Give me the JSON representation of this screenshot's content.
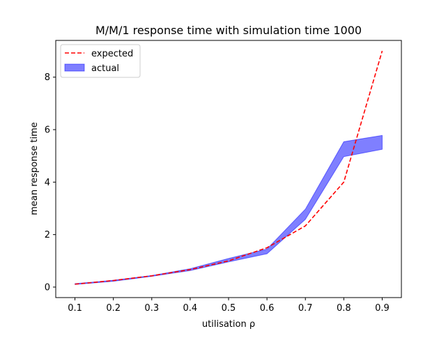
{
  "chart_data": {
    "type": "area",
    "title": "M/M/1 response time with simulation time 1000",
    "xlabel": "utilisation ρ",
    "ylabel": "mean response time",
    "xlim": [
      0.05,
      0.95
    ],
    "ylim": [
      -0.4,
      9.4
    ],
    "xticks": [
      0.1,
      0.2,
      0.3,
      0.4,
      0.5,
      0.6,
      0.7,
      0.8,
      0.9
    ],
    "xtick_labels": [
      "0.1",
      "0.2",
      "0.3",
      "0.4",
      "0.5",
      "0.6",
      "0.7",
      "0.8",
      "0.9"
    ],
    "yticks": [
      0,
      2,
      4,
      6,
      8
    ],
    "ytick_labels": [
      "0",
      "2",
      "4",
      "6",
      "8"
    ],
    "grid": false,
    "legend_position": "top-left",
    "series": [
      {
        "name": "expected",
        "kind": "line",
        "style": "dashed",
        "color": "#ff0000",
        "x": [
          0.1,
          0.2,
          0.3,
          0.4,
          0.5,
          0.6,
          0.7,
          0.8,
          0.9
        ],
        "y": [
          0.111,
          0.25,
          0.429,
          0.667,
          1.0,
          1.5,
          2.333,
          4.0,
          9.0
        ]
      },
      {
        "name": "actual",
        "kind": "band",
        "color": "#0000ff",
        "x": [
          0.1,
          0.2,
          0.3,
          0.4,
          0.5,
          0.6,
          0.7,
          0.8,
          0.9
        ],
        "lower": [
          0.1,
          0.22,
          0.41,
          0.63,
          0.96,
          1.27,
          2.58,
          4.97,
          5.25
        ],
        "upper": [
          0.13,
          0.26,
          0.44,
          0.7,
          1.09,
          1.45,
          2.97,
          5.54,
          5.78
        ]
      }
    ]
  }
}
